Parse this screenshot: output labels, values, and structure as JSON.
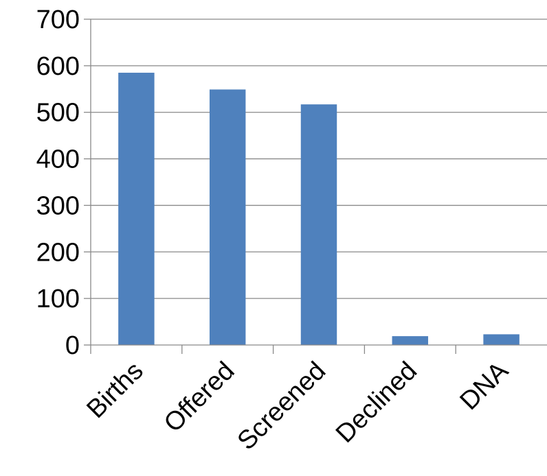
{
  "chart_data": {
    "type": "bar",
    "title": "",
    "xlabel": "",
    "ylabel": "",
    "categories": [
      "Births",
      "Offered",
      "Screened",
      "Declined",
      "DNA"
    ],
    "values": [
      585,
      549,
      517,
      19,
      23
    ],
    "ylim": [
      0,
      700
    ],
    "yticks": [
      0,
      100,
      200,
      300,
      400,
      500,
      600,
      700
    ],
    "grid": true,
    "legend": "none",
    "bar_color": "#4f81bd",
    "grid_color": "#898989"
  }
}
